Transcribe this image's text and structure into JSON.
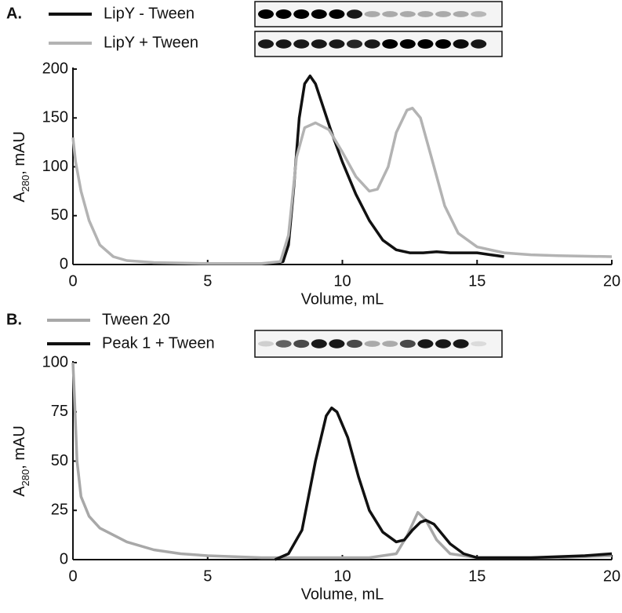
{
  "chart_data": [
    {
      "type": "line",
      "panel_label": "A.",
      "xlabel": "Volume, mL",
      "ylabel": [
        "A",
        "280",
        ", mAU"
      ],
      "xlim": [
        0,
        20
      ],
      "ylim": [
        0,
        200
      ],
      "xticks": [
        0,
        5,
        10,
        15,
        20
      ],
      "yticks": [
        0,
        50,
        100,
        150,
        200
      ],
      "series": [
        {
          "name": "LipY - Tween",
          "color": "#111111",
          "x": [
            7.0,
            7.5,
            7.8,
            8.0,
            8.2,
            8.4,
            8.6,
            8.8,
            9.0,
            9.3,
            9.6,
            10.0,
            10.5,
            11.0,
            11.5,
            12.0,
            12.5,
            13.0,
            13.5,
            14.0,
            15.0,
            15.5,
            16.0
          ],
          "values": [
            1,
            1,
            3,
            20,
            80,
            150,
            185,
            193,
            185,
            160,
            135,
            105,
            72,
            45,
            25,
            15,
            12,
            12,
            13,
            12,
            12,
            10,
            8
          ]
        },
        {
          "name": "LipY + Tween",
          "color": "#b3b3b3",
          "x": [
            0,
            0.1,
            0.3,
            0.6,
            1.0,
            1.5,
            2.0,
            3.0,
            5.0,
            7.0,
            7.7,
            8.0,
            8.3,
            8.6,
            9.0,
            9.5,
            10.0,
            10.5,
            11.0,
            11.3,
            11.7,
            12.0,
            12.4,
            12.6,
            12.9,
            13.3,
            13.8,
            14.3,
            15.0,
            16.0,
            17.0,
            18.0,
            20.0
          ],
          "values": [
            130,
            105,
            75,
            45,
            20,
            8,
            4,
            2,
            1,
            1,
            3,
            30,
            110,
            140,
            145,
            138,
            115,
            90,
            75,
            77,
            100,
            135,
            158,
            160,
            150,
            110,
            60,
            32,
            18,
            12,
            10,
            9,
            8
          ]
        }
      ]
    },
    {
      "type": "line",
      "panel_label": "B.",
      "xlabel": "Volume, mL",
      "ylabel": [
        "A",
        "280",
        ", mAU"
      ],
      "xlim": [
        0,
        20
      ],
      "ylim": [
        0,
        100
      ],
      "xticks": [
        0,
        5,
        10,
        15,
        20
      ],
      "yticks": [
        0,
        25,
        50,
        75,
        100
      ],
      "series": [
        {
          "name": "Tween 20",
          "color": "#a8a8a8",
          "x": [
            0,
            0.05,
            0.15,
            0.3,
            0.6,
            1.0,
            2.0,
            3.0,
            4.0,
            5.0,
            7.0,
            10.0,
            11.0,
            12.0,
            12.4,
            12.8,
            13.1,
            13.5,
            14.0,
            15.0,
            18.0,
            20.0
          ],
          "values": [
            100,
            85,
            50,
            32,
            22,
            16,
            9,
            5,
            3,
            2,
            1,
            1,
            1,
            3,
            12,
            24,
            20,
            10,
            3,
            1,
            1,
            2
          ]
        },
        {
          "name": "Peak 1 + Tween",
          "color": "#111111",
          "x": [
            7.5,
            8.0,
            8.5,
            9.0,
            9.4,
            9.6,
            9.8,
            10.2,
            10.6,
            11.0,
            11.5,
            12.0,
            12.3,
            12.6,
            12.9,
            13.1,
            13.4,
            14.0,
            14.5,
            15.0,
            17.0,
            19.0,
            20.0
          ],
          "values": [
            0,
            3,
            15,
            50,
            73,
            77,
            75,
            62,
            42,
            25,
            14,
            9,
            10,
            15,
            19,
            20,
            18,
            8,
            3,
            1,
            1,
            2,
            3
          ]
        }
      ]
    }
  ]
}
